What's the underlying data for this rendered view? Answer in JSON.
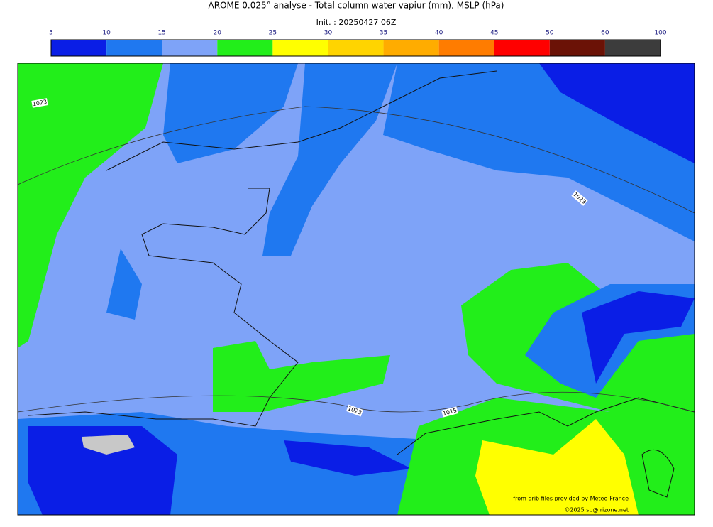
{
  "header": {
    "title": "AROME 0.025° analyse - Total column water vapiur (mm), MSLP (hPa)",
    "init": "Init. : 20250427 06Z"
  },
  "colorbar": {
    "ticks": [
      5,
      10,
      15,
      20,
      25,
      30,
      35,
      40,
      45,
      50,
      60,
      100
    ],
    "colors": [
      "#0a1ee6",
      "#1f78f0",
      "#7ea3f8",
      "#22ee1a",
      "#ffff00",
      "#ffd400",
      "#ffac00",
      "#ff7c00",
      "#ff0000",
      "#6b1206",
      "#3c3c3c"
    ]
  },
  "map": {
    "contour_labels": [
      "1023",
      "1023",
      "1023",
      "1015"
    ],
    "credits": [
      "from grib files provided by Meteo-France",
      "©2025 sb@irizone.net"
    ]
  }
}
